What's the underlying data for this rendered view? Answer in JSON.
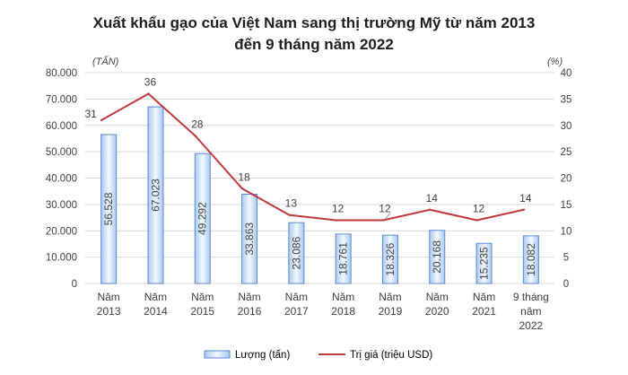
{
  "chart_data": {
    "type": "bar",
    "title_line1": "Xuất khẩu gạo của Việt Nam sang thị trường Mỹ từ năm 2013",
    "title_line2": "đến 9 tháng năm 2022",
    "left_unit": "(TẤN)",
    "right_unit": "(%)",
    "categories": [
      [
        "Năm",
        "2013"
      ],
      [
        "Năm",
        "2014"
      ],
      [
        "Năm",
        "2015"
      ],
      [
        "Năm",
        "2016"
      ],
      [
        "Năm",
        "2017"
      ],
      [
        "Năm",
        "2018"
      ],
      [
        "Năm",
        "2019"
      ],
      [
        "Năm",
        "2020"
      ],
      [
        "Năm",
        "2021"
      ],
      [
        "9 tháng",
        "năm",
        "2022"
      ]
    ],
    "y_left": {
      "min": 0,
      "max": 80000,
      "ticks": [
        "0",
        "10.000",
        "20.000",
        "30.000",
        "40.000",
        "50.000",
        "60.000",
        "70.000",
        "80.000"
      ]
    },
    "y_right": {
      "min": 0,
      "max": 40,
      "ticks": [
        "0",
        "5",
        "10",
        "15",
        "20",
        "25",
        "30",
        "35",
        "40"
      ]
    },
    "bar_series": {
      "name": "Lượng (tấn)",
      "values": [
        56528,
        67023,
        49292,
        33863,
        23086,
        18761,
        18326,
        20168,
        15235,
        18082
      ],
      "labels": [
        "56.528",
        "67.023",
        "49.292",
        "33.863",
        "23.086",
        "18.761",
        "18.326",
        "20.168",
        "15.235",
        "18.082"
      ]
    },
    "line_series": {
      "name": "Trị giá (triệu USD)",
      "values": [
        31,
        36,
        28,
        18,
        13,
        12,
        12,
        14,
        12,
        14
      ],
      "labels": [
        "31",
        "36",
        "28",
        "18",
        "13",
        "12",
        "12",
        "14",
        "12",
        "14"
      ]
    },
    "colors": {
      "bar_fill_edge": "#a9c8ef",
      "bar_fill_center": "#f3f8ff",
      "bar_stroke": "#5b8ad0",
      "line": "#c0393b",
      "grid": "#d9d9d9",
      "text": "#404040",
      "title": "#1f1f1f"
    },
    "grid": true,
    "legend_position": "bottom"
  }
}
